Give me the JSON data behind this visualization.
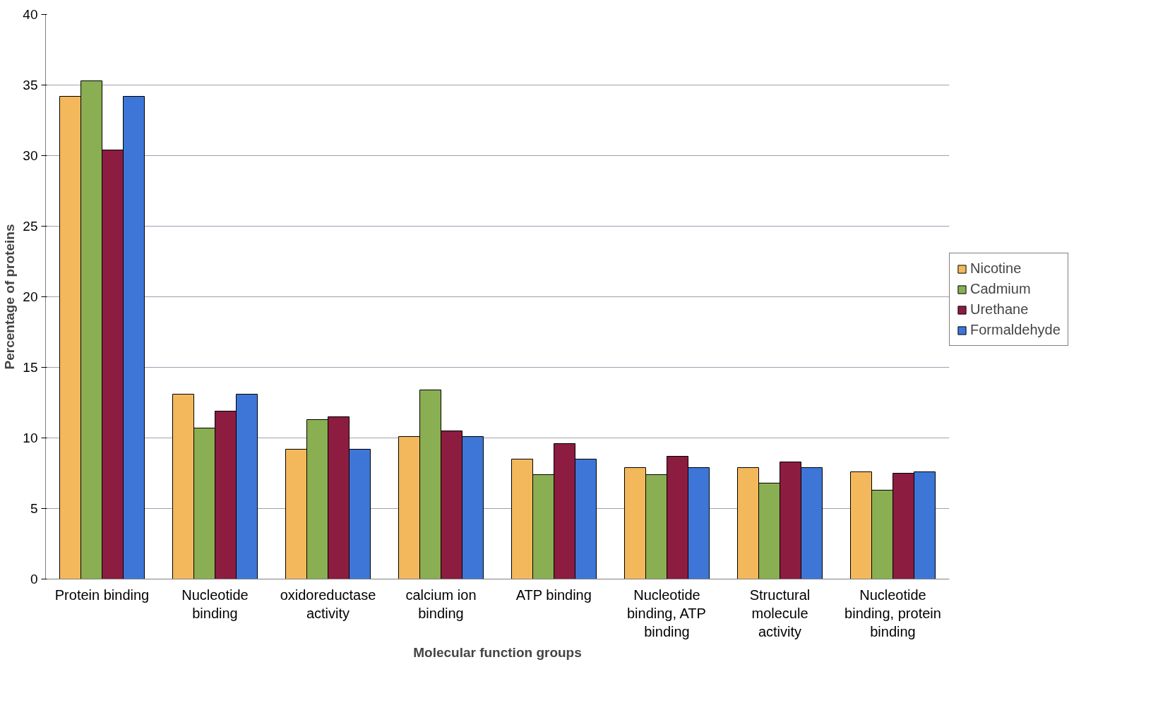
{
  "chart_data": {
    "type": "bar",
    "xlabel": "Molecular function groups",
    "ylabel": "Percentage of proteins",
    "categories": [
      "Protein binding",
      "Nucleotide binding",
      "oxidoreductase activity",
      "calcium ion binding",
      "ATP binding",
      "Nucleotide binding, ATP binding",
      "Structural molecule activity",
      "Nucleotide binding, protein binding"
    ],
    "series": [
      {
        "name": "Nicotine",
        "color": "#f4b85c",
        "values": [
          34.2,
          13.1,
          9.2,
          10.1,
          8.5,
          7.9,
          7.9,
          7.6
        ]
      },
      {
        "name": "Cadmium",
        "color": "#8aae52",
        "values": [
          35.3,
          10.7,
          11.3,
          13.4,
          7.4,
          7.4,
          6.8,
          6.3
        ]
      },
      {
        "name": "Urethane",
        "color": "#8c1c40",
        "values": [
          30.4,
          11.9,
          11.5,
          10.5,
          9.6,
          8.7,
          8.3,
          7.5
        ]
      },
      {
        "name": "Formaldehyde",
        "color": "#3d76d6",
        "values": [
          34.2,
          13.1,
          9.2,
          10.1,
          8.5,
          7.9,
          7.9,
          7.6
        ]
      }
    ],
    "ylim": [
      0,
      40
    ],
    "yticks": [
      0,
      5,
      10,
      15,
      20,
      25,
      30,
      35,
      40
    ],
    "grid": "y",
    "legend": "right"
  }
}
